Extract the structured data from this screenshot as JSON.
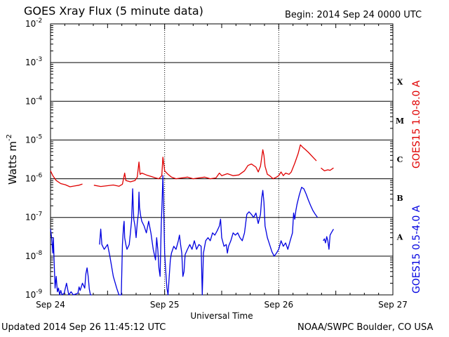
{
  "header": {
    "title": "GOES Xray Flux (5 minute data)",
    "begin": "Begin:  2014 Sep 24 0000 UTC"
  },
  "footer": {
    "updated": "Updated 2014 Sep 26 11:45:12 UTC",
    "credit": "NOAA/SWPC Boulder, CO USA"
  },
  "chart_data": {
    "type": "line",
    "title": "GOES Xray Flux (5 minute data)",
    "xlabel": "Universal Time",
    "ylabel_base": "Watts m",
    "ylabel_exp": "-2",
    "yscale": "log",
    "xlim_days": [
      0,
      3
    ],
    "x_tick_labels": [
      "Sep 24",
      "Sep 25",
      "Sep 26",
      "Sep 27"
    ],
    "y_tick_exponents": [
      -9,
      -8,
      -7,
      -6,
      -5,
      -4,
      -3,
      -2
    ],
    "y_tick_base": "10",
    "grid": true,
    "flare_classes": [
      {
        "label": "A",
        "decade": -8
      },
      {
        "label": "B",
        "decade": -7
      },
      {
        "label": "C",
        "decade": -6
      },
      {
        "label": "M",
        "decade": -5
      },
      {
        "label": "X",
        "decade": -4
      }
    ],
    "colors": {
      "long": "#e00000",
      "short": "#0000e0",
      "grid": "#000000"
    },
    "series": [
      {
        "name": "GOES15 1.0-8.0 A",
        "color": "#e00000",
        "points": [
          [
            0.0,
            1.6e-06
          ],
          [
            0.02,
            1.2e-06
          ],
          [
            0.05,
            9e-07
          ],
          [
            0.09,
            7.5e-07
          ],
          [
            0.13,
            7e-07
          ],
          [
            0.17,
            6.2e-07
          ],
          [
            0.21,
            6.5e-07
          ],
          [
            0.25,
            6.8e-07
          ],
          [
            0.28,
            7.3e-07
          ],
          null,
          [
            0.38,
            6.8e-07
          ],
          [
            0.44,
            6.3e-07
          ],
          [
            0.5,
            6.6e-07
          ],
          [
            0.55,
            6.9e-07
          ],
          [
            0.6,
            6.4e-07
          ],
          [
            0.63,
            7.2e-07
          ],
          [
            0.65,
            1.4e-06
          ],
          [
            0.66,
            9e-07
          ],
          [
            0.7,
            8.3e-07
          ],
          [
            0.74,
            9e-07
          ],
          [
            0.76,
            1.1e-06
          ],
          [
            0.775,
            2.7e-06
          ],
          [
            0.785,
            1.3e-06
          ],
          [
            0.8,
            1.4e-06
          ],
          [
            0.84,
            1.25e-06
          ],
          [
            0.88,
            1.15e-06
          ],
          [
            0.92,
            1.05e-06
          ],
          [
            0.95,
            1e-06
          ],
          [
            0.975,
            1.2e-06
          ],
          [
            0.985,
            3.6e-06
          ],
          [
            1.0,
            1.6e-06
          ],
          [
            1.03,
            1.3e-06
          ],
          [
            1.06,
            1.1e-06
          ],
          [
            1.1,
            1e-06
          ],
          [
            1.15,
            1.05e-06
          ],
          [
            1.2,
            1.1e-06
          ],
          [
            1.25,
            1e-06
          ],
          [
            1.3,
            1.05e-06
          ],
          [
            1.35,
            1.1e-06
          ],
          [
            1.4,
            1e-06
          ],
          [
            1.45,
            1.05e-06
          ],
          [
            1.48,
            1.4e-06
          ],
          [
            1.5,
            1.2e-06
          ],
          [
            1.55,
            1.35e-06
          ],
          [
            1.6,
            1.2e-06
          ],
          [
            1.65,
            1.25e-06
          ],
          [
            1.7,
            1.6e-06
          ],
          [
            1.73,
            2.2e-06
          ],
          [
            1.76,
            2.4e-06
          ],
          [
            1.8,
            2e-06
          ],
          [
            1.82,
            1.5e-06
          ],
          [
            1.84,
            2.1e-06
          ],
          [
            1.86,
            5.6e-06
          ],
          [
            1.87,
            4e-06
          ],
          [
            1.88,
            2.1e-06
          ],
          [
            1.9,
            1.3e-06
          ],
          [
            1.92,
            1.2e-06
          ],
          [
            1.95,
            1e-06
          ],
          [
            1.98,
            1.1e-06
          ],
          [
            2.0,
            1.2e-06
          ],
          [
            2.02,
            1.5e-06
          ],
          [
            2.04,
            1.2e-06
          ],
          [
            2.06,
            1.4e-06
          ],
          [
            2.09,
            1.3e-06
          ],
          [
            2.11,
            1.5e-06
          ],
          [
            2.14,
            2.5e-06
          ],
          [
            2.17,
            4.5e-06
          ],
          [
            2.19,
            7.5e-06
          ],
          [
            2.21,
            6.5e-06
          ],
          [
            2.23,
            5.8e-06
          ],
          [
            2.26,
            4.8e-06
          ],
          [
            2.3,
            3.6e-06
          ],
          [
            2.33,
            2.9e-06
          ],
          null,
          [
            2.37,
            1.9e-06
          ],
          [
            2.4,
            1.6e-06
          ],
          [
            2.43,
            1.7e-06
          ],
          [
            2.45,
            1.65e-06
          ],
          [
            2.48,
            1.9e-06
          ]
        ]
      },
      {
        "name": "GOES15 0.5-4.0 A",
        "color": "#0000e0",
        "points": [
          [
            0.0,
            5e-08
          ],
          [
            0.01,
            3e-08
          ],
          [
            0.02,
            1.2e-08
          ],
          [
            0.025,
            3e-08
          ],
          [
            0.03,
            1e-08
          ],
          [
            0.04,
            1.5e-09
          ],
          [
            0.05,
            3e-09
          ],
          [
            0.06,
            1.2e-09
          ],
          [
            0.07,
            1.5e-09
          ],
          [
            0.08,
            1e-09
          ],
          [
            0.09,
            1.3e-09
          ],
          [
            0.1,
            1e-09
          ],
          [
            0.12,
            1.1e-09
          ],
          [
            0.14,
            2e-09
          ],
          [
            0.16,
            1e-09
          ],
          [
            0.18,
            1.2e-09
          ],
          [
            0.2,
            1e-09
          ],
          [
            0.24,
            1.1e-09
          ],
          [
            0.25,
            1.6e-09
          ],
          [
            0.26,
            1.3e-09
          ],
          [
            0.28,
            2e-09
          ],
          [
            0.3,
            1.5e-09
          ],
          [
            0.31,
            3.5e-09
          ],
          [
            0.32,
            5e-09
          ],
          [
            0.33,
            3e-09
          ],
          [
            0.34,
            1.4e-09
          ],
          [
            0.35,
            1e-09
          ],
          [
            0.36,
            8e-10
          ],
          null,
          [
            0.43,
            2e-08
          ],
          [
            0.44,
            5e-08
          ],
          [
            0.45,
            2e-08
          ],
          [
            0.47,
            1.5e-08
          ],
          [
            0.5,
            2e-08
          ],
          [
            0.52,
            1e-08
          ],
          [
            0.55,
            3e-09
          ],
          [
            0.58,
            1.5e-09
          ],
          [
            0.6,
            1e-09
          ],
          [
            0.62,
            1e-09
          ],
          [
            0.63,
            2e-08
          ],
          [
            0.64,
            6e-08
          ],
          [
            0.645,
            8e-08
          ],
          [
            0.65,
            3e-08
          ],
          [
            0.66,
            2e-08
          ],
          [
            0.67,
            1.5e-08
          ],
          [
            0.69,
            2e-08
          ],
          [
            0.7,
            4e-08
          ],
          [
            0.71,
            8e-08
          ],
          [
            0.72,
            5.5e-07
          ],
          [
            0.725,
            2e-07
          ],
          [
            0.73,
            9e-08
          ],
          [
            0.74,
            6e-08
          ],
          [
            0.75,
            3e-08
          ],
          [
            0.76,
            7e-08
          ],
          [
            0.77,
            1.3e-07
          ],
          [
            0.775,
            4.5e-07
          ],
          [
            0.78,
            1.8e-07
          ],
          [
            0.79,
            1.1e-07
          ],
          [
            0.8,
            8e-08
          ],
          [
            0.82,
            6e-08
          ],
          [
            0.84,
            4e-08
          ],
          [
            0.86,
            8e-08
          ],
          [
            0.88,
            4e-08
          ],
          [
            0.9,
            1.5e-08
          ],
          [
            0.92,
            8e-09
          ],
          [
            0.93,
            3e-08
          ],
          [
            0.94,
            1.5e-08
          ],
          [
            0.95,
            5e-09
          ],
          [
            0.96,
            3e-09
          ],
          [
            0.97,
            6e-08
          ],
          [
            0.98,
            4e-07
          ],
          [
            0.985,
            1.2e-06
          ],
          [
            0.99,
            3e-07
          ],
          [
            1.0,
            1.2e-08
          ],
          [
            1.01,
            4e-09
          ],
          [
            1.02,
            1.5e-09
          ],
          [
            1.03,
            1e-09
          ],
          [
            1.04,
            3e-09
          ],
          [
            1.05,
            8e-09
          ],
          [
            1.06,
            1.2e-08
          ],
          [
            1.08,
            1.8e-08
          ],
          [
            1.1,
            1.5e-08
          ],
          [
            1.12,
            2.5e-08
          ],
          [
            1.13,
            3.5e-08
          ],
          [
            1.14,
            2e-08
          ],
          [
            1.15,
            1.2e-08
          ],
          [
            1.16,
            3e-09
          ],
          [
            1.17,
            4e-09
          ],
          [
            1.18,
            1.1e-08
          ],
          [
            1.2,
            1.5e-08
          ],
          [
            1.22,
            2e-08
          ],
          [
            1.24,
            1.5e-08
          ],
          [
            1.26,
            2.5e-08
          ],
          [
            1.28,
            1.5e-08
          ],
          [
            1.3,
            2e-08
          ],
          [
            1.32,
            1.8e-08
          ],
          [
            1.33,
            1e-09
          ],
          [
            1.34,
            1.2e-08
          ],
          [
            1.36,
            2.5e-08
          ],
          [
            1.38,
            3e-08
          ],
          [
            1.4,
            2.5e-08
          ],
          [
            1.42,
            4e-08
          ],
          [
            1.44,
            3.5e-08
          ],
          [
            1.46,
            4.5e-08
          ],
          [
            1.48,
            6e-08
          ],
          [
            1.49,
            9e-08
          ],
          [
            1.5,
            3e-08
          ],
          [
            1.52,
            1.8e-08
          ],
          [
            1.54,
            2e-08
          ],
          [
            1.55,
            1.2e-08
          ],
          [
            1.56,
            1.8e-08
          ],
          [
            1.58,
            2.5e-08
          ],
          [
            1.6,
            4e-08
          ],
          [
            1.62,
            3.5e-08
          ],
          [
            1.64,
            4e-08
          ],
          [
            1.66,
            3e-08
          ],
          [
            1.68,
            2.5e-08
          ],
          [
            1.7,
            4e-08
          ],
          [
            1.72,
            1.2e-07
          ],
          [
            1.74,
            1.4e-07
          ],
          [
            1.76,
            1.2e-07
          ],
          [
            1.78,
            1e-07
          ],
          [
            1.8,
            1.3e-07
          ],
          [
            1.82,
            7e-08
          ],
          [
            1.84,
            1.2e-07
          ],
          [
            1.85,
            3e-07
          ],
          [
            1.86,
            5e-07
          ],
          [
            1.87,
            2.5e-07
          ],
          [
            1.88,
            6e-08
          ],
          [
            1.9,
            3e-08
          ],
          [
            1.92,
            2e-08
          ],
          [
            1.94,
            1.3e-08
          ],
          [
            1.96,
            1e-08
          ],
          [
            1.98,
            1.2e-08
          ],
          [
            2.0,
            1.5e-08
          ],
          [
            2.02,
            2.5e-08
          ],
          [
            2.04,
            1.8e-08
          ],
          [
            2.06,
            2.2e-08
          ],
          [
            2.08,
            1.5e-08
          ],
          [
            2.1,
            2.5e-08
          ],
          [
            2.12,
            4e-08
          ],
          [
            2.13,
            1.3e-07
          ],
          [
            2.14,
            9e-08
          ],
          [
            2.15,
            1.5e-07
          ],
          [
            2.16,
            2.2e-07
          ],
          [
            2.18,
            3.8e-07
          ],
          [
            2.2,
            6e-07
          ],
          [
            2.22,
            5.5e-07
          ],
          [
            2.24,
            4e-07
          ],
          [
            2.26,
            2.8e-07
          ],
          [
            2.28,
            2e-07
          ],
          [
            2.3,
            1.5e-07
          ],
          [
            2.32,
            1.2e-07
          ],
          [
            2.34,
            1e-07
          ],
          null,
          [
            2.39,
            2.5e-08
          ],
          [
            2.4,
            2.8e-08
          ],
          [
            2.41,
            2.2e-08
          ],
          [
            2.42,
            3.2e-08
          ],
          [
            2.43,
            2.5e-08
          ],
          [
            2.44,
            1.5e-08
          ],
          [
            2.45,
            3.5e-08
          ],
          [
            2.46,
            4e-08
          ],
          [
            2.48,
            5e-08
          ]
        ]
      }
    ]
  }
}
